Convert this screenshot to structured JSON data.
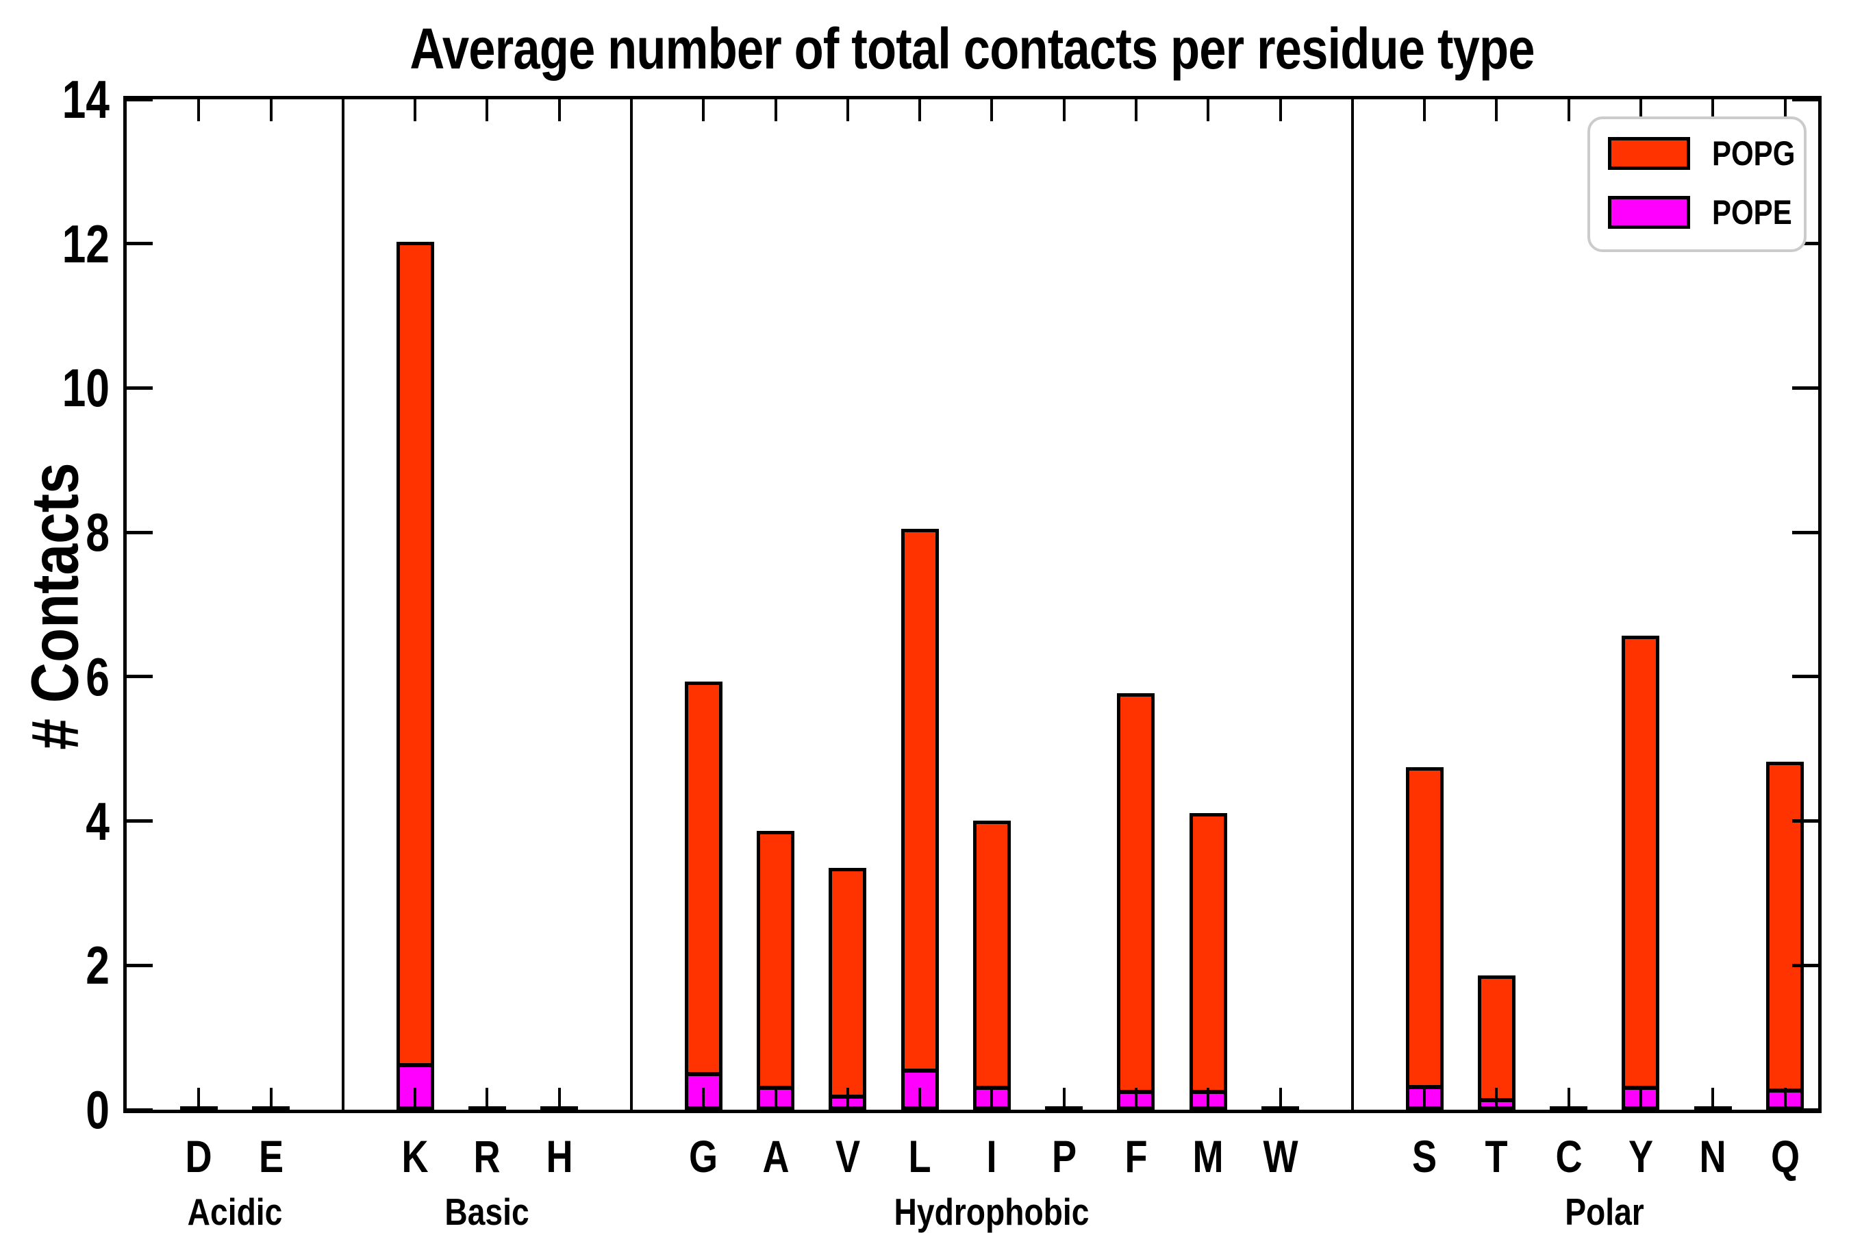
{
  "title": "Average number of total contacts per residue type",
  "ylabel": "# Contacts",
  "legend": {
    "entries": [
      {
        "label": "POPG",
        "color": "#ff3300"
      },
      {
        "label": "POPE",
        "color": "#ff00ff"
      }
    ]
  },
  "colors": {
    "popg": "#ff3300",
    "pope": "#ff00ff",
    "axis": "#000000",
    "legend_border": "#cbcbcb"
  },
  "chart_data": {
    "type": "bar",
    "stacked": true,
    "title": "Average number of total contacts per residue type",
    "xlabel": "",
    "ylabel": "# Contacts",
    "ylim": [
      0,
      14
    ],
    "yticks": [
      0,
      2,
      4,
      6,
      8,
      10,
      12,
      14
    ],
    "grid": false,
    "legend_position": "upper right",
    "categories": [
      "D",
      "E",
      "K",
      "R",
      "H",
      "G",
      "A",
      "V",
      "L",
      "I",
      "P",
      "F",
      "M",
      "W",
      "S",
      "T",
      "C",
      "Y",
      "N",
      "Q"
    ],
    "groups": [
      {
        "label": "Acidic",
        "residues": [
          "D",
          "E"
        ]
      },
      {
        "label": "Basic",
        "residues": [
          "K",
          "R",
          "H"
        ]
      },
      {
        "label": "Hydrophobic",
        "residues": [
          "G",
          "A",
          "V",
          "L",
          "I",
          "P",
          "F",
          "M",
          "W"
        ]
      },
      {
        "label": "Polar",
        "residues": [
          "S",
          "T",
          "C",
          "Y",
          "N",
          "Q"
        ]
      }
    ],
    "series": [
      {
        "name": "POPE",
        "color": "#ff00ff",
        "values": [
          0.01,
          0.01,
          0.6,
          0.01,
          0.01,
          0.47,
          0.28,
          0.16,
          0.52,
          0.28,
          0.01,
          0.23,
          0.23,
          0.01,
          0.29,
          0.11,
          0.01,
          0.28,
          0.01,
          0.25
        ]
      },
      {
        "name": "POPG",
        "color": "#ff3300",
        "values": [
          0.01,
          0.01,
          11.43,
          0.01,
          0.01,
          5.46,
          3.58,
          3.19,
          7.53,
          3.73,
          0.01,
          5.54,
          3.88,
          0.01,
          4.46,
          1.75,
          0.01,
          6.29,
          0.01,
          4.57
        ]
      }
    ],
    "totals": [
      0.02,
      0.02,
      12.03,
      0.02,
      0.02,
      5.93,
      3.86,
      3.35,
      8.05,
      4.01,
      0.02,
      5.77,
      4.11,
      0.02,
      4.75,
      1.86,
      0.02,
      6.57,
      0.02,
      4.82
    ]
  }
}
